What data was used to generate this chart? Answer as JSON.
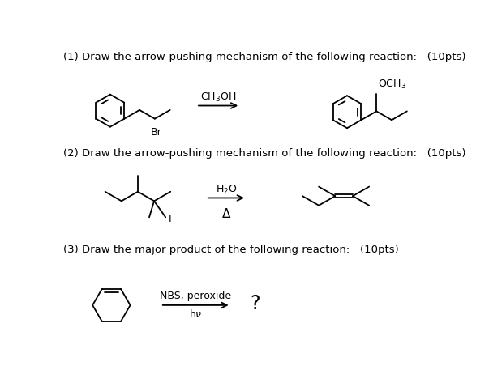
{
  "background_color": "#ffffff",
  "text_color": "#000000",
  "line_color": "#000000",
  "lw": 1.3,
  "q1": "(1) Draw the arrow-pushing mechanism of the following reaction:   (10pts)",
  "q2": "(2) Draw the arrow-pushing mechanism of the following reaction:   (10pts)",
  "q3": "(3) Draw the major product of the following reaction:   (10pts)",
  "font_q": 9.5,
  "font_label": 9,
  "fig_w": 6.03,
  "fig_h": 4.78,
  "dpi": 100
}
